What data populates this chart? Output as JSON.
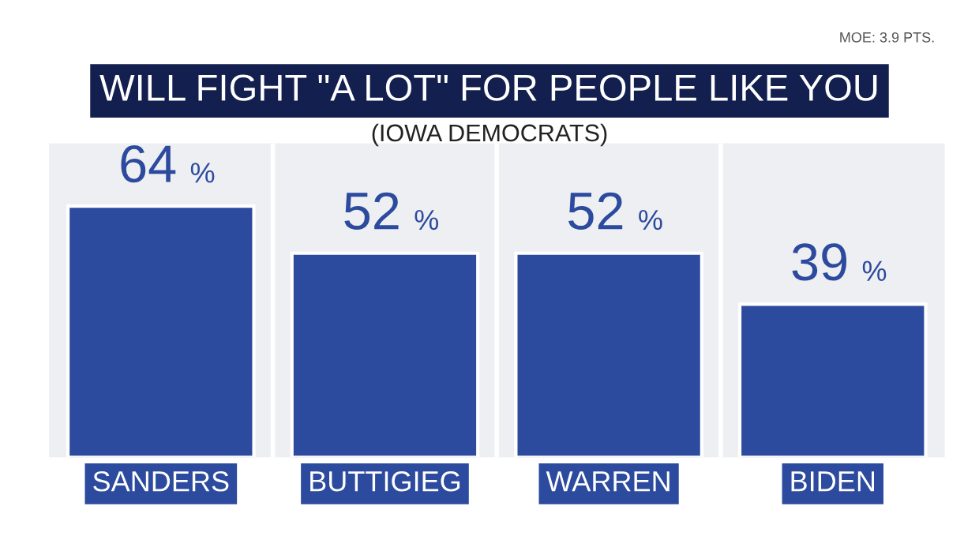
{
  "chart_data": {
    "type": "bar",
    "title": "WILL FIGHT \"A LOT\" FOR PEOPLE LIKE YOU",
    "subtitle": "(IOWA DEMOCRATS)",
    "categories": [
      "SANDERS",
      "BUTTIGIEG",
      "WARREN",
      "BIDEN"
    ],
    "values": [
      64,
      52,
      52,
      39
    ],
    "value_labels": [
      "64%",
      "52%",
      "52%",
      "39%"
    ],
    "color": "#2c4a9e",
    "annotations": [
      "MOE: 3.9 PTS."
    ],
    "grid": false,
    "legend": false
  }
}
